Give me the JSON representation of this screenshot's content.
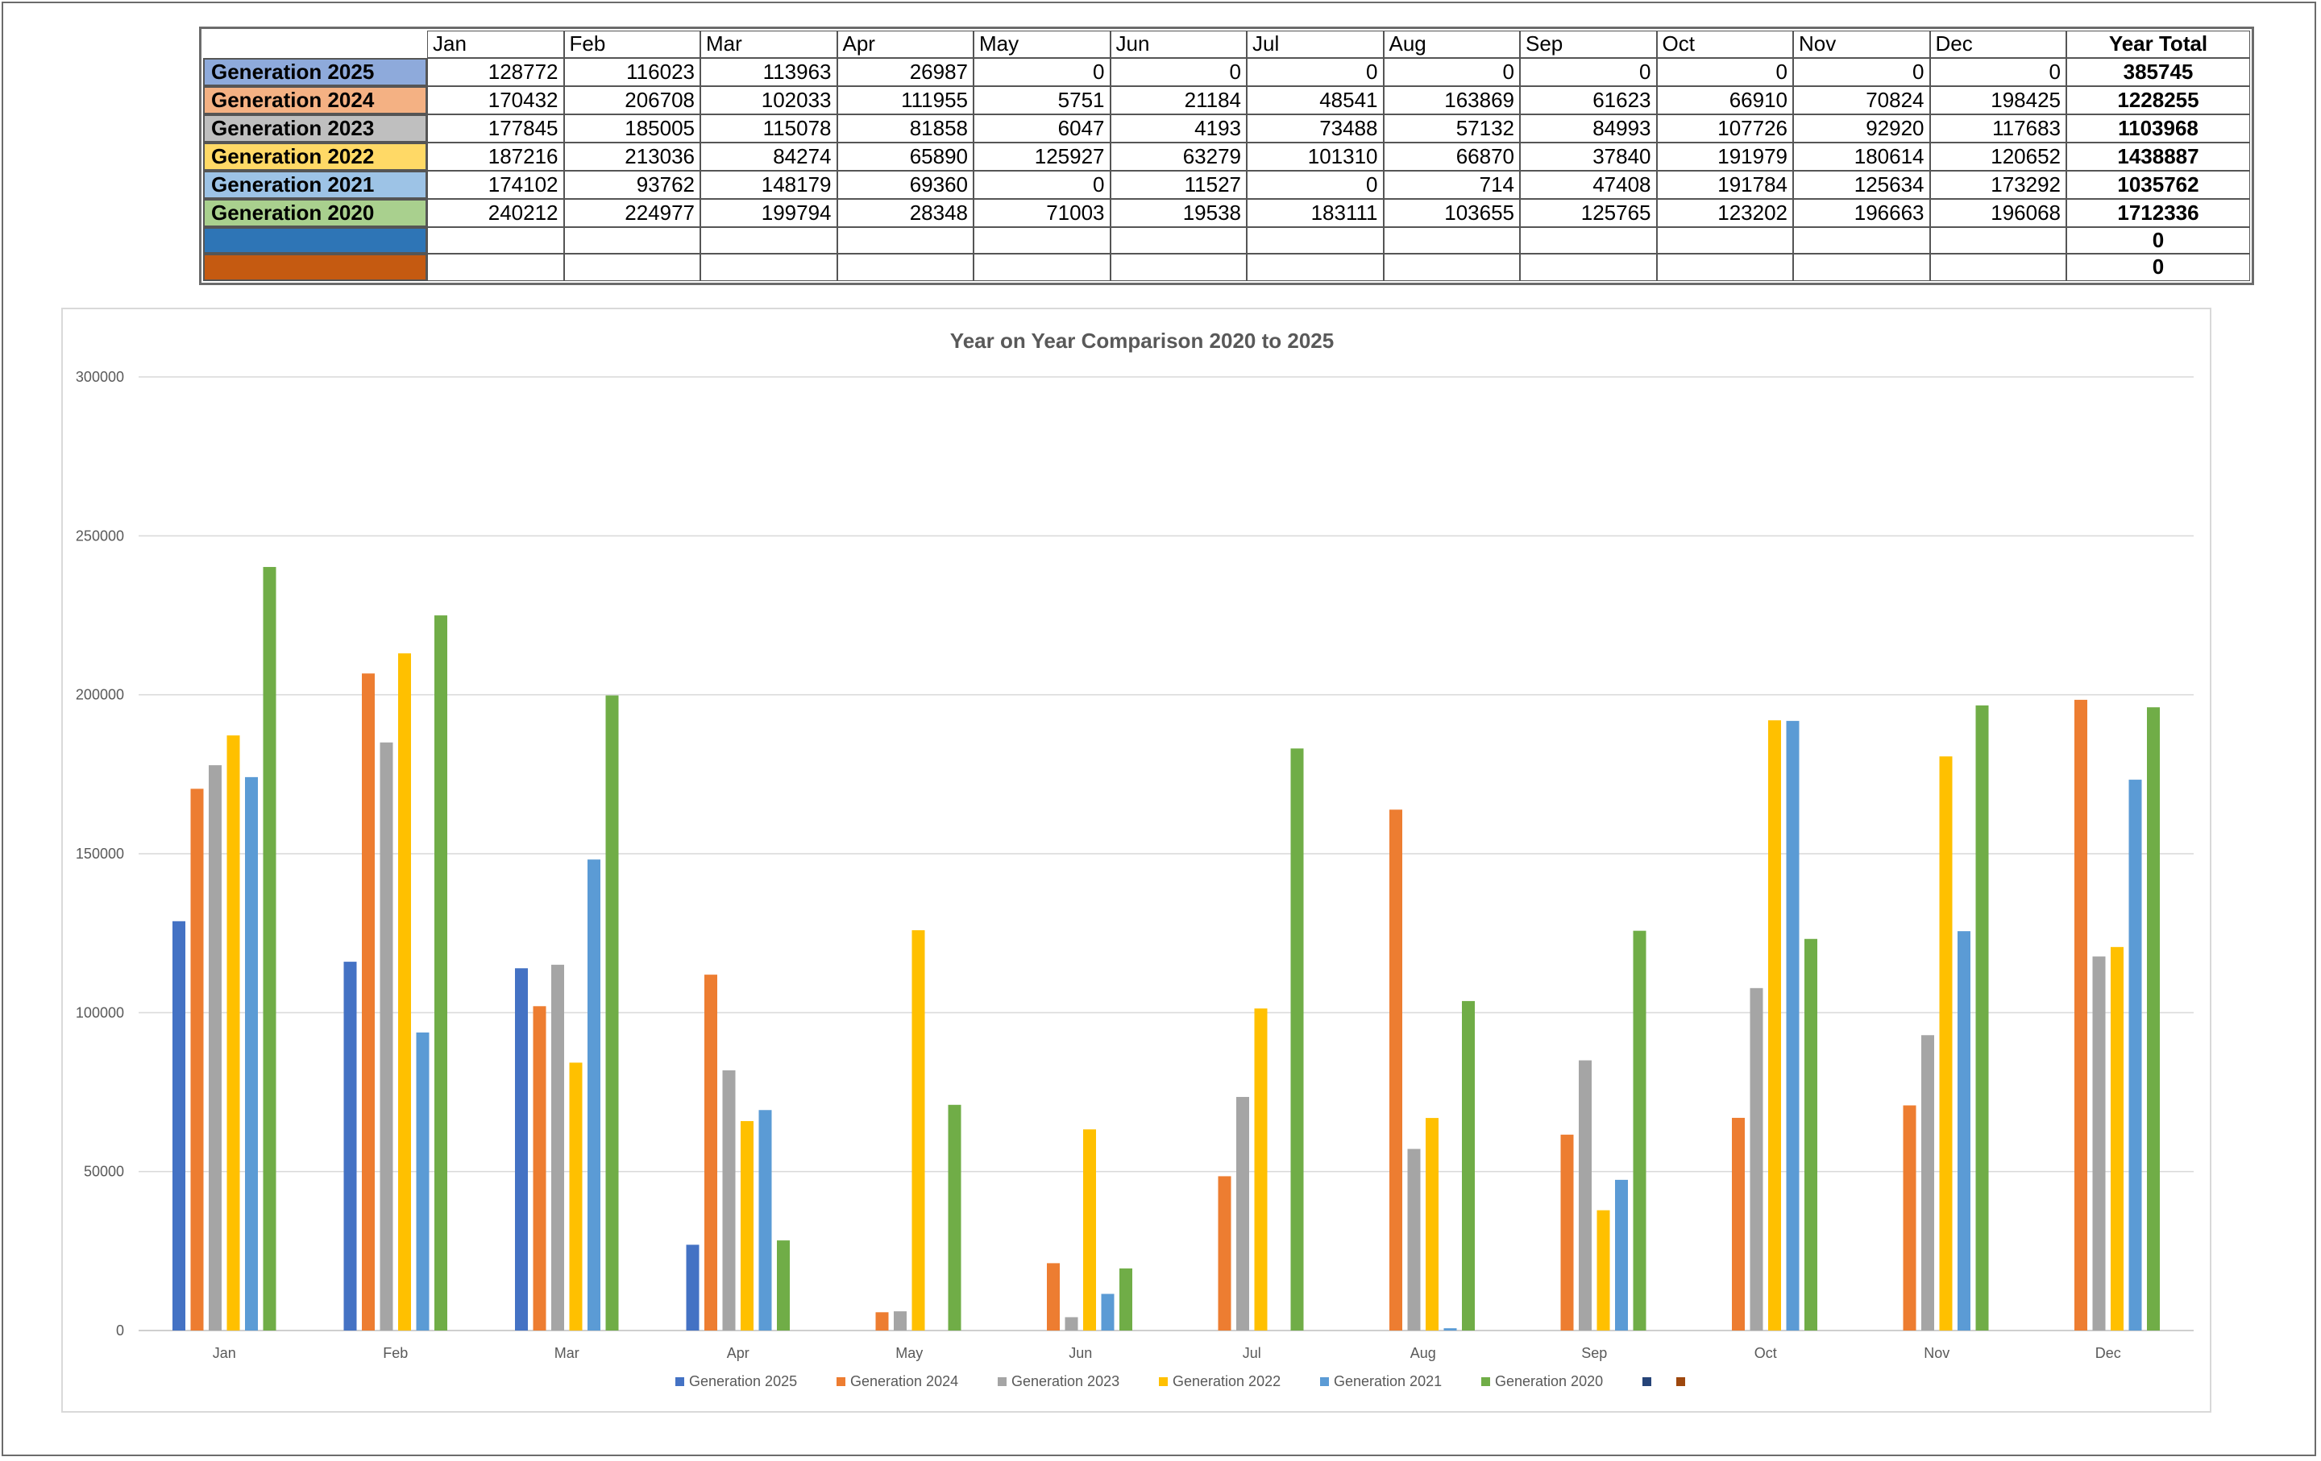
{
  "table": {
    "months": [
      "Jan",
      "Feb",
      "Mar",
      "Apr",
      "May",
      "Jun",
      "Jul",
      "Aug",
      "Sep",
      "Oct",
      "Nov",
      "Dec"
    ],
    "total_header": "Year Total",
    "rows": [
      {
        "label": "Generation 2025",
        "color": "#8eaadb",
        "values": [
          "128772",
          "116023",
          "113963",
          "26987",
          "0",
          "0",
          "0",
          "0",
          "0",
          "0",
          "0",
          "0"
        ],
        "total": "385745"
      },
      {
        "label": "Generation 2024",
        "color": "#f4b183",
        "values": [
          "170432",
          "206708",
          "102033",
          "111955",
          "5751",
          "21184",
          "48541",
          "163869",
          "61623",
          "66910",
          "70824",
          "198425"
        ],
        "total": "1228255"
      },
      {
        "label": "Generation 2023",
        "color": "#bfbfbf",
        "values": [
          "177845",
          "185005",
          "115078",
          "81858",
          "6047",
          "4193",
          "73488",
          "57132",
          "84993",
          "107726",
          "92920",
          "117683"
        ],
        "total": "1103968"
      },
      {
        "label": "Generation 2022",
        "color": "#ffd966",
        "values": [
          "187216",
          "213036",
          "84274",
          "65890",
          "125927",
          "63279",
          "101310",
          "66870",
          "37840",
          "191979",
          "180614",
          "120652"
        ],
        "total": "1438887"
      },
      {
        "label": "Generation 2021",
        "color": "#9dc3e6",
        "values": [
          "174102",
          "93762",
          "148179",
          "69360",
          "0",
          "11527",
          "0",
          "714",
          "47408",
          "191784",
          "125634",
          "173292"
        ],
        "total": "1035762"
      },
      {
        "label": "Generation 2020",
        "color": "#a9d08e",
        "values": [
          "240212",
          "224977",
          "199794",
          "28348",
          "71003",
          "19538",
          "183111",
          "103655",
          "125765",
          "123202",
          "196663",
          "196068"
        ],
        "total": "1712336"
      },
      {
        "label": "",
        "color": "#2e75b6",
        "values": [
          "",
          "",
          "",
          "",
          "",
          "",
          "",
          "",
          "",
          "",
          "",
          ""
        ],
        "total": "0"
      },
      {
        "label": "",
        "color": "#c55a11",
        "values": [
          "",
          "",
          "",
          "",
          "",
          "",
          "",
          "",
          "",
          "",
          "",
          ""
        ],
        "total": "0"
      }
    ]
  },
  "chart_data": {
    "type": "bar",
    "title": "Year on Year Comparison 2020 to 2025",
    "xlabel": "",
    "ylabel": "",
    "ylim": [
      0,
      300000
    ],
    "yticks": [
      "0",
      "50000",
      "100000",
      "150000",
      "200000",
      "250000",
      "300000"
    ],
    "grid": true,
    "legend_position": "bottom",
    "categories": [
      "Jan",
      "Feb",
      "Mar",
      "Apr",
      "May",
      "Jun",
      "Jul",
      "Aug",
      "Sep",
      "Oct",
      "Nov",
      "Dec"
    ],
    "series": [
      {
        "name": "Generation 2025",
        "color": "#4472c4",
        "values": [
          128772,
          116023,
          113963,
          26987,
          0,
          0,
          0,
          0,
          0,
          0,
          0,
          0
        ]
      },
      {
        "name": "Generation 2024",
        "color": "#ed7d31",
        "values": [
          170432,
          206708,
          102033,
          111955,
          5751,
          21184,
          48541,
          163869,
          61623,
          66910,
          70824,
          198425
        ]
      },
      {
        "name": "Generation 2023",
        "color": "#a5a5a5",
        "values": [
          177845,
          185005,
          115078,
          81858,
          6047,
          4193,
          73488,
          57132,
          84993,
          107726,
          92920,
          117683
        ]
      },
      {
        "name": "Generation 2022",
        "color": "#ffc000",
        "values": [
          187216,
          213036,
          84274,
          65890,
          125927,
          63279,
          101310,
          66870,
          37840,
          191979,
          180614,
          120652
        ]
      },
      {
        "name": "Generation 2021",
        "color": "#5b9bd5",
        "values": [
          174102,
          93762,
          148179,
          69360,
          0,
          11527,
          0,
          714,
          47408,
          191784,
          125634,
          173292
        ]
      },
      {
        "name": "Generation 2020",
        "color": "#70ad47",
        "values": [
          240212,
          224977,
          199794,
          28348,
          71003,
          19538,
          183111,
          103655,
          125765,
          123202,
          196663,
          196068
        ]
      },
      {
        "name": "",
        "color": "#264478",
        "values": [
          null,
          null,
          null,
          null,
          null,
          null,
          null,
          null,
          null,
          null,
          null,
          null
        ]
      },
      {
        "name": "",
        "color": "#9e480e",
        "values": [
          null,
          null,
          null,
          null,
          null,
          null,
          null,
          null,
          null,
          null,
          null,
          null
        ]
      }
    ]
  }
}
